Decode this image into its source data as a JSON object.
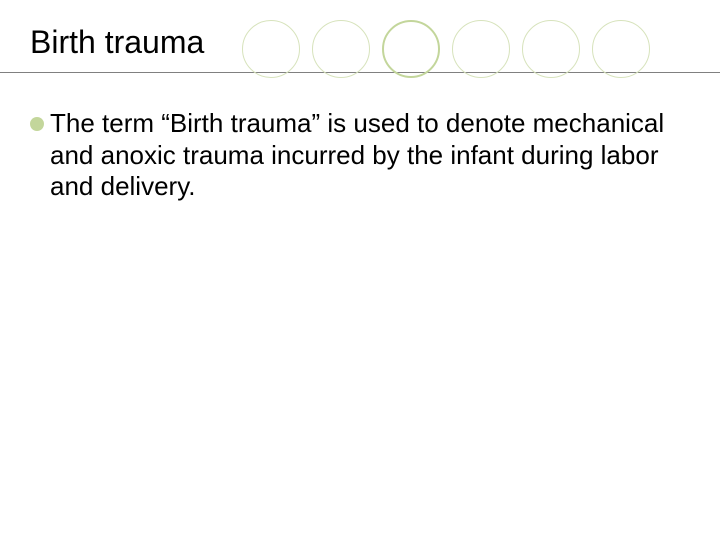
{
  "slide": {
    "title": "Birth trauma",
    "title_color": "#000000",
    "title_fontsize": 32,
    "underline_color": "#808080",
    "background": "#ffffff",
    "decorative_circles": [
      {
        "size": 58,
        "border_width": 1,
        "border_color": "#d7e3bc",
        "fill": "transparent"
      },
      {
        "size": 58,
        "border_width": 1,
        "border_color": "#d7e3bc",
        "fill": "transparent"
      },
      {
        "size": 58,
        "border_width": 2,
        "border_color": "#c3d69b",
        "fill": "transparent"
      },
      {
        "size": 58,
        "border_width": 1,
        "border_color": "#d7e3bc",
        "fill": "transparent"
      },
      {
        "size": 58,
        "border_width": 1,
        "border_color": "#d7e3bc",
        "fill": "transparent"
      },
      {
        "size": 58,
        "border_width": 1,
        "border_color": "#d7e3bc",
        "fill": "transparent"
      }
    ],
    "bullets": [
      {
        "text": "The term “Birth trauma” is used to denote mechanical and anoxic trauma incurred by the infant during labor and delivery.",
        "dot_color": "#c3d69b",
        "text_color": "#000000",
        "fontsize": 26
      }
    ]
  }
}
